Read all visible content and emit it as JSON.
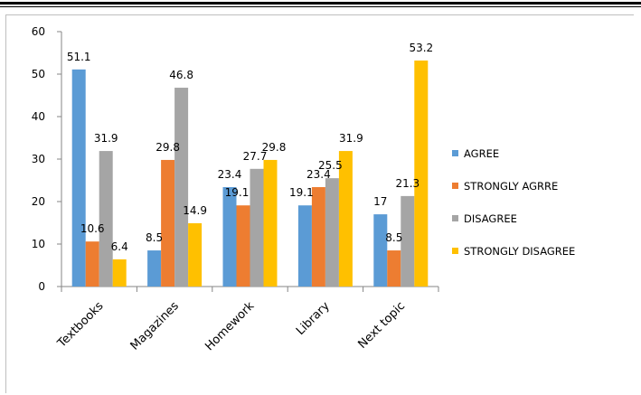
{
  "chart_data": {
    "type": "bar",
    "title": "",
    "xlabel": "",
    "ylabel": "",
    "ylim": [
      0,
      60
    ],
    "yticks": [
      0,
      10,
      20,
      30,
      40,
      50,
      60
    ],
    "categories": [
      "Textbooks",
      "Magazines",
      "Homework",
      "Library",
      "Next topic"
    ],
    "series": [
      {
        "name": "AGREE",
        "color": "#5b9bd5",
        "values": [
          51.1,
          8.5,
          23.4,
          19.1,
          17
        ]
      },
      {
        "name": "STRONGLY AGRRE",
        "color": "#ed7d31",
        "values": [
          10.6,
          29.8,
          19.1,
          23.4,
          8.5
        ]
      },
      {
        "name": "DISAGREE",
        "color": "#a5a5a5",
        "values": [
          31.9,
          46.8,
          27.7,
          25.5,
          21.3
        ]
      },
      {
        "name": "STRONGLY DISAGREE",
        "color": "#ffc000",
        "values": [
          6.4,
          14.9,
          29.8,
          31.9,
          53.2
        ]
      }
    ],
    "legend_position": "right",
    "grid": false
  }
}
